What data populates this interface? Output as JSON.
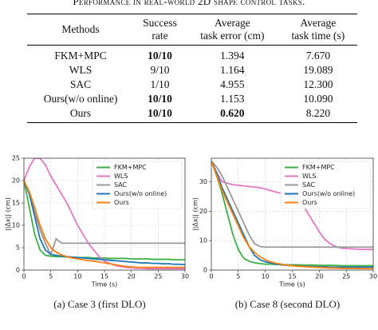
{
  "caption": "Performance in real-world 2D shape control tasks.",
  "table": {
    "headers": [
      [
        "Methods"
      ],
      [
        "Success",
        "rate"
      ],
      [
        "Average",
        "task error (cm)"
      ],
      [
        "Average",
        "task time (s)"
      ]
    ],
    "rows": [
      [
        "FKM+MPC",
        "10/10",
        "1.394",
        "7.670"
      ],
      [
        "WLS",
        "9/10",
        "1.164",
        "19.089"
      ],
      [
        "SAC",
        "1/10",
        "4.955",
        "12.300"
      ],
      [
        "Ours(w/o online)",
        "10/10",
        "1.153",
        "10.090"
      ],
      [
        "Ours",
        "10/10",
        "0.620",
        "8.220"
      ]
    ],
    "bold_cells": [
      [
        0,
        1
      ],
      [
        3,
        1
      ],
      [
        4,
        1
      ],
      [
        4,
        2
      ]
    ]
  },
  "chart_data": [
    {
      "type": "line",
      "caption": "(a)  Case 3 (first DLO)",
      "xlabel": "Time (s)",
      "ylabel": "||Δx|| (cm)",
      "x": [
        0,
        1,
        2,
        3,
        4,
        5,
        6,
        7,
        8,
        9,
        10,
        11,
        12,
        13,
        14,
        15,
        16,
        17,
        18,
        19,
        20,
        21,
        22,
        23,
        24,
        25,
        26,
        27,
        28,
        29,
        30
      ],
      "xlim": [
        0,
        30
      ],
      "ylim": [
        0,
        25
      ],
      "xticks": [
        0,
        5,
        10,
        15,
        20,
        25,
        30
      ],
      "yticks": [
        0,
        5,
        10,
        15,
        20,
        25
      ],
      "grid": true,
      "legend": "upper right",
      "series": [
        {
          "name": "FKM+MPC",
          "color": "#3cb043",
          "values": [
            20,
            14,
            8,
            4.5,
            3.3,
            3.1,
            3,
            3,
            2.9,
            2.9,
            2.8,
            2.8,
            2.8,
            2.7,
            2.7,
            2.7,
            2.6,
            2.6,
            2.6,
            2.6,
            2.5,
            2.5,
            2.5,
            2.5,
            2.4,
            2.4,
            2.4,
            2.4,
            2.3,
            2.3,
            2.3
          ]
        },
        {
          "name": "WLS",
          "color": "#e377c2",
          "values": [
            20,
            23,
            25,
            25,
            23.5,
            21,
            19,
            17,
            15,
            12.5,
            10,
            8,
            6,
            4.5,
            3,
            2,
            1.5,
            1,
            0.8,
            0.6,
            0.5,
            0.4,
            0.4,
            0.3,
            0.3,
            0.3,
            0.3,
            0.3,
            0.3,
            0.3,
            0.3
          ]
        },
        {
          "name": "SAC",
          "color": "#999999",
          "values": [
            20,
            17,
            13,
            9,
            6,
            3.5,
            7,
            6,
            6,
            6,
            6,
            6,
            6,
            6,
            6,
            6,
            6,
            6,
            6,
            6,
            6,
            6,
            6,
            6,
            6,
            6,
            6,
            6,
            6,
            6,
            6
          ]
        },
        {
          "name": "Ours(w/o online)",
          "color": "#1f77b4",
          "values": [
            20,
            17,
            12,
            7,
            4.5,
            3.5,
            3.3,
            3.1,
            3,
            2.9,
            2.8,
            2.7,
            2.6,
            2.5,
            2.4,
            2.3,
            2.2,
            2.1,
            2,
            1.9,
            1.8,
            1.7,
            1.6,
            1.6,
            1.5,
            1.5,
            1.4,
            1.4,
            1.3,
            1.3,
            1.2
          ]
        },
        {
          "name": "Ours",
          "color": "#ff7f0e",
          "values": [
            20,
            17.5,
            14,
            10,
            7,
            5,
            4,
            3.4,
            3,
            2.7,
            2.5,
            2.3,
            2.1,
            2,
            1.8,
            1.6,
            1.4,
            1.2,
            1,
            0.8,
            0.7,
            0.6,
            0.6,
            0.6,
            0.6,
            0.6,
            0.6,
            0.6,
            0.6,
            0.6,
            0.6
          ]
        }
      ]
    },
    {
      "type": "line",
      "caption": "(b)  Case 8 (second DLO)",
      "xlabel": "Time (s)",
      "ylabel": "||Δx|| (cm)",
      "x": [
        0,
        1,
        2,
        3,
        4,
        5,
        6,
        7,
        8,
        9,
        10,
        11,
        12,
        13,
        14,
        15,
        16,
        17,
        18,
        19,
        20,
        21,
        22,
        23,
        24,
        25,
        26,
        27,
        28,
        29,
        30
      ],
      "xlim": [
        0,
        30
      ],
      "ylim": [
        0,
        38
      ],
      "xticks": [
        0,
        5,
        10,
        15,
        20,
        25,
        30
      ],
      "yticks": [
        0,
        10,
        20,
        30
      ],
      "grid": true,
      "legend": "upper right",
      "series": [
        {
          "name": "FKM+MPC",
          "color": "#3cb043",
          "values": [
            37,
            32,
            26,
            19,
            12,
            7,
            4,
            3,
            2.5,
            2.2,
            2,
            2,
            1.9,
            1.9,
            1.8,
            1.8,
            1.8,
            1.7,
            1.7,
            1.7,
            1.6,
            1.6,
            1.6,
            1.6,
            1.5,
            1.5,
            1.5,
            1.5,
            1.5,
            1.5,
            1.5
          ]
        },
        {
          "name": "WLS",
          "color": "#e377c2",
          "values": [
            37,
            33,
            30,
            29.5,
            29,
            28.8,
            28.6,
            28.4,
            28.2,
            28,
            27.5,
            27,
            26.5,
            26,
            25.5,
            25,
            24,
            22,
            19,
            16,
            13,
            10.5,
            9,
            8,
            7.5,
            7.3,
            7.2,
            7.1,
            7,
            7,
            7
          ]
        },
        {
          "name": "SAC",
          "color": "#999999",
          "values": [
            37,
            35,
            32,
            28,
            24,
            20,
            16,
            12,
            9,
            8,
            7.8,
            7.8,
            7.8,
            7.8,
            7.8,
            7.8,
            7.8,
            7.8,
            7.8,
            7.8,
            7.8,
            7.8,
            7.8,
            7.8,
            7.8,
            7.8,
            7.8,
            7.8,
            7.8,
            7.8,
            7.8
          ]
        },
        {
          "name": "Ours(w/o online)",
          "color": "#1f77b4",
          "values": [
            37,
            33,
            28,
            24,
            20,
            16,
            12,
            8,
            5,
            3.5,
            2.8,
            2.4,
            2,
            1.8,
            1.6,
            1.5,
            1.4,
            1.3,
            1.2,
            1.2,
            1.1,
            1.1,
            1,
            1,
            1,
            1,
            1,
            1,
            1,
            1,
            1
          ]
        },
        {
          "name": "Ours",
          "color": "#ff7f0e",
          "values": [
            37,
            32,
            27,
            23,
            19,
            15,
            11,
            8,
            6,
            4.5,
            3.5,
            2.8,
            2.3,
            2,
            1.7,
            1.5,
            1.3,
            1.2,
            1.1,
            1,
            0.9,
            0.8,
            0.7,
            0.7,
            0.6,
            0.6,
            0.6,
            0.6,
            0.5,
            0.5,
            0.5
          ]
        }
      ]
    }
  ]
}
